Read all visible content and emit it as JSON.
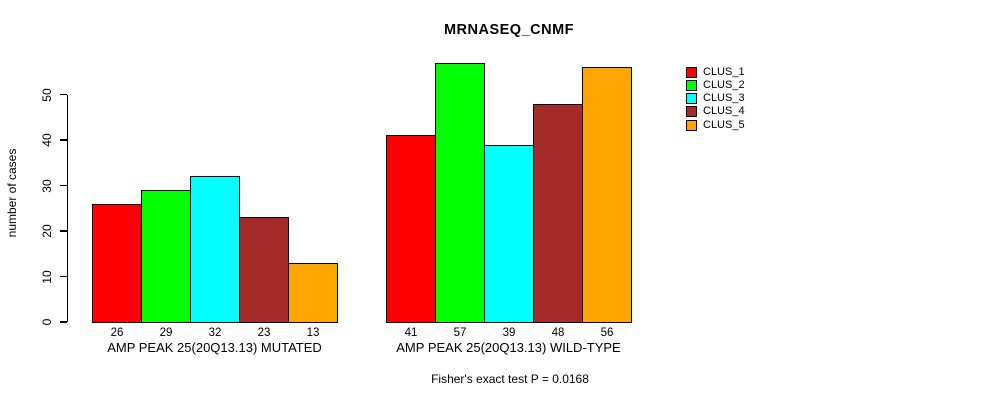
{
  "title": "MRNASEQ_CNMF",
  "chart_data": {
    "type": "bar",
    "title": "MRNASEQ_CNMF",
    "xlabel": "",
    "ylabel": "number of cases",
    "categories": [
      "AMP PEAK 25(20Q13.13) MUTATED",
      "AMP PEAK 25(20Q13.13) WILD-TYPE"
    ],
    "series": [
      {
        "name": "CLUS_1",
        "color": "#FF0000",
        "values": [
          26,
          41
        ]
      },
      {
        "name": "CLUS_2",
        "color": "#00FF00",
        "values": [
          29,
          57
        ]
      },
      {
        "name": "CLUS_3",
        "color": "#00FFFF",
        "values": [
          32,
          39
        ]
      },
      {
        "name": "CLUS_4",
        "color": "#A52A2A",
        "values": [
          23,
          48
        ]
      },
      {
        "name": "CLUS_5",
        "color": "#FFA500",
        "values": [
          13,
          56
        ]
      }
    ],
    "bar_value_labels_shown": true,
    "yticks": [
      0,
      10,
      20,
      30,
      40,
      50
    ],
    "ylim": [
      0,
      59
    ],
    "grid": false,
    "legend_position": "right",
    "annotation": "Fisher's exact test P = 0.0168"
  },
  "colors": {
    "background": "#FFFFFF",
    "axis": "#000000",
    "text": "#000000"
  }
}
